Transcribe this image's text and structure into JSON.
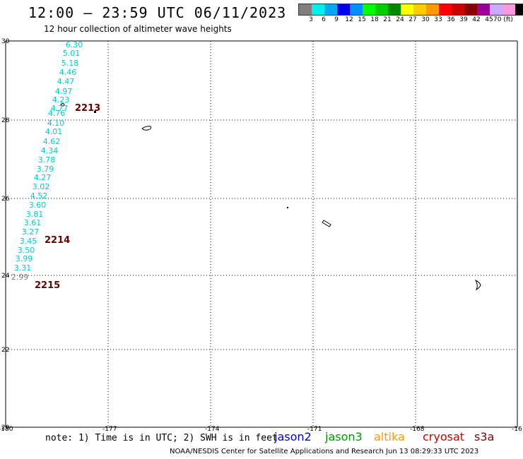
{
  "header": {
    "title": "12:00 – 23:59 UTC 06/11/2023",
    "subtitle": "12 hour collection of altimeter wave heights"
  },
  "colorbar": {
    "colors": [
      "#7f7f7f",
      "#00eeee",
      "#00aaee",
      "#0000ee",
      "#0090ff",
      "#00ff00",
      "#00cc00",
      "#008800",
      "#ffff00",
      "#ffcc00",
      "#ff9900",
      "#ff0000",
      "#cc0000",
      "#880000",
      "#990099",
      "#ccaaff",
      "#ff99dd",
      "#000000"
    ],
    "labels": [
      "3",
      "6",
      "9",
      "12",
      "15",
      "18",
      "21",
      "24",
      "27",
      "30",
      "33",
      "36",
      "39",
      "42",
      "45",
      "70 (ft)"
    ]
  },
  "map": {
    "lon_range": [
      -180,
      -165
    ],
    "lat_range": [
      20,
      30
    ],
    "lon_ticks": [
      "-180",
      "-177",
      "-174",
      "-171",
      "-168",
      "-16"
    ],
    "lat_ticks": [
      "30",
      "28",
      "26",
      "24",
      "22",
      "20"
    ],
    "lat_tick_label_28_top": "28",
    "wave_heights_color": "#00cccc",
    "wave_height_readings": [
      "6.30",
      "5.01",
      "5.18",
      "4.46",
      "4.47",
      "4.97",
      "4.23",
      "4.77",
      "4.76",
      "4.10",
      "4.01",
      "4.62",
      "4.34",
      "3.78",
      "3.79",
      "4.27",
      "3.02",
      "4.52",
      "3.60",
      "3.81",
      "3.61",
      "3.27",
      "3.45",
      "3.50",
      "3.99",
      "3.31",
      "2.99"
    ],
    "time_labels": [
      "2213",
      "2214",
      "2215"
    ],
    "time_label_color": "#660000"
  },
  "footer": {
    "note": "note: 1) Time is in UTC; 2) SWH is in feet",
    "credit": "NOAA/NESDIS Center for Satellite Applications and Research    Jun 13 08:29:33 UTC 2023",
    "missions": [
      {
        "name": "jason2",
        "color": "#0000dd"
      },
      {
        "name": "jason3",
        "color": "#009900"
      },
      {
        "name": "altika",
        "color": "#ff9900"
      },
      {
        "name": "cryosat",
        "color": "#cc0000"
      },
      {
        "name": "s3a",
        "color": "#880000"
      }
    ]
  }
}
